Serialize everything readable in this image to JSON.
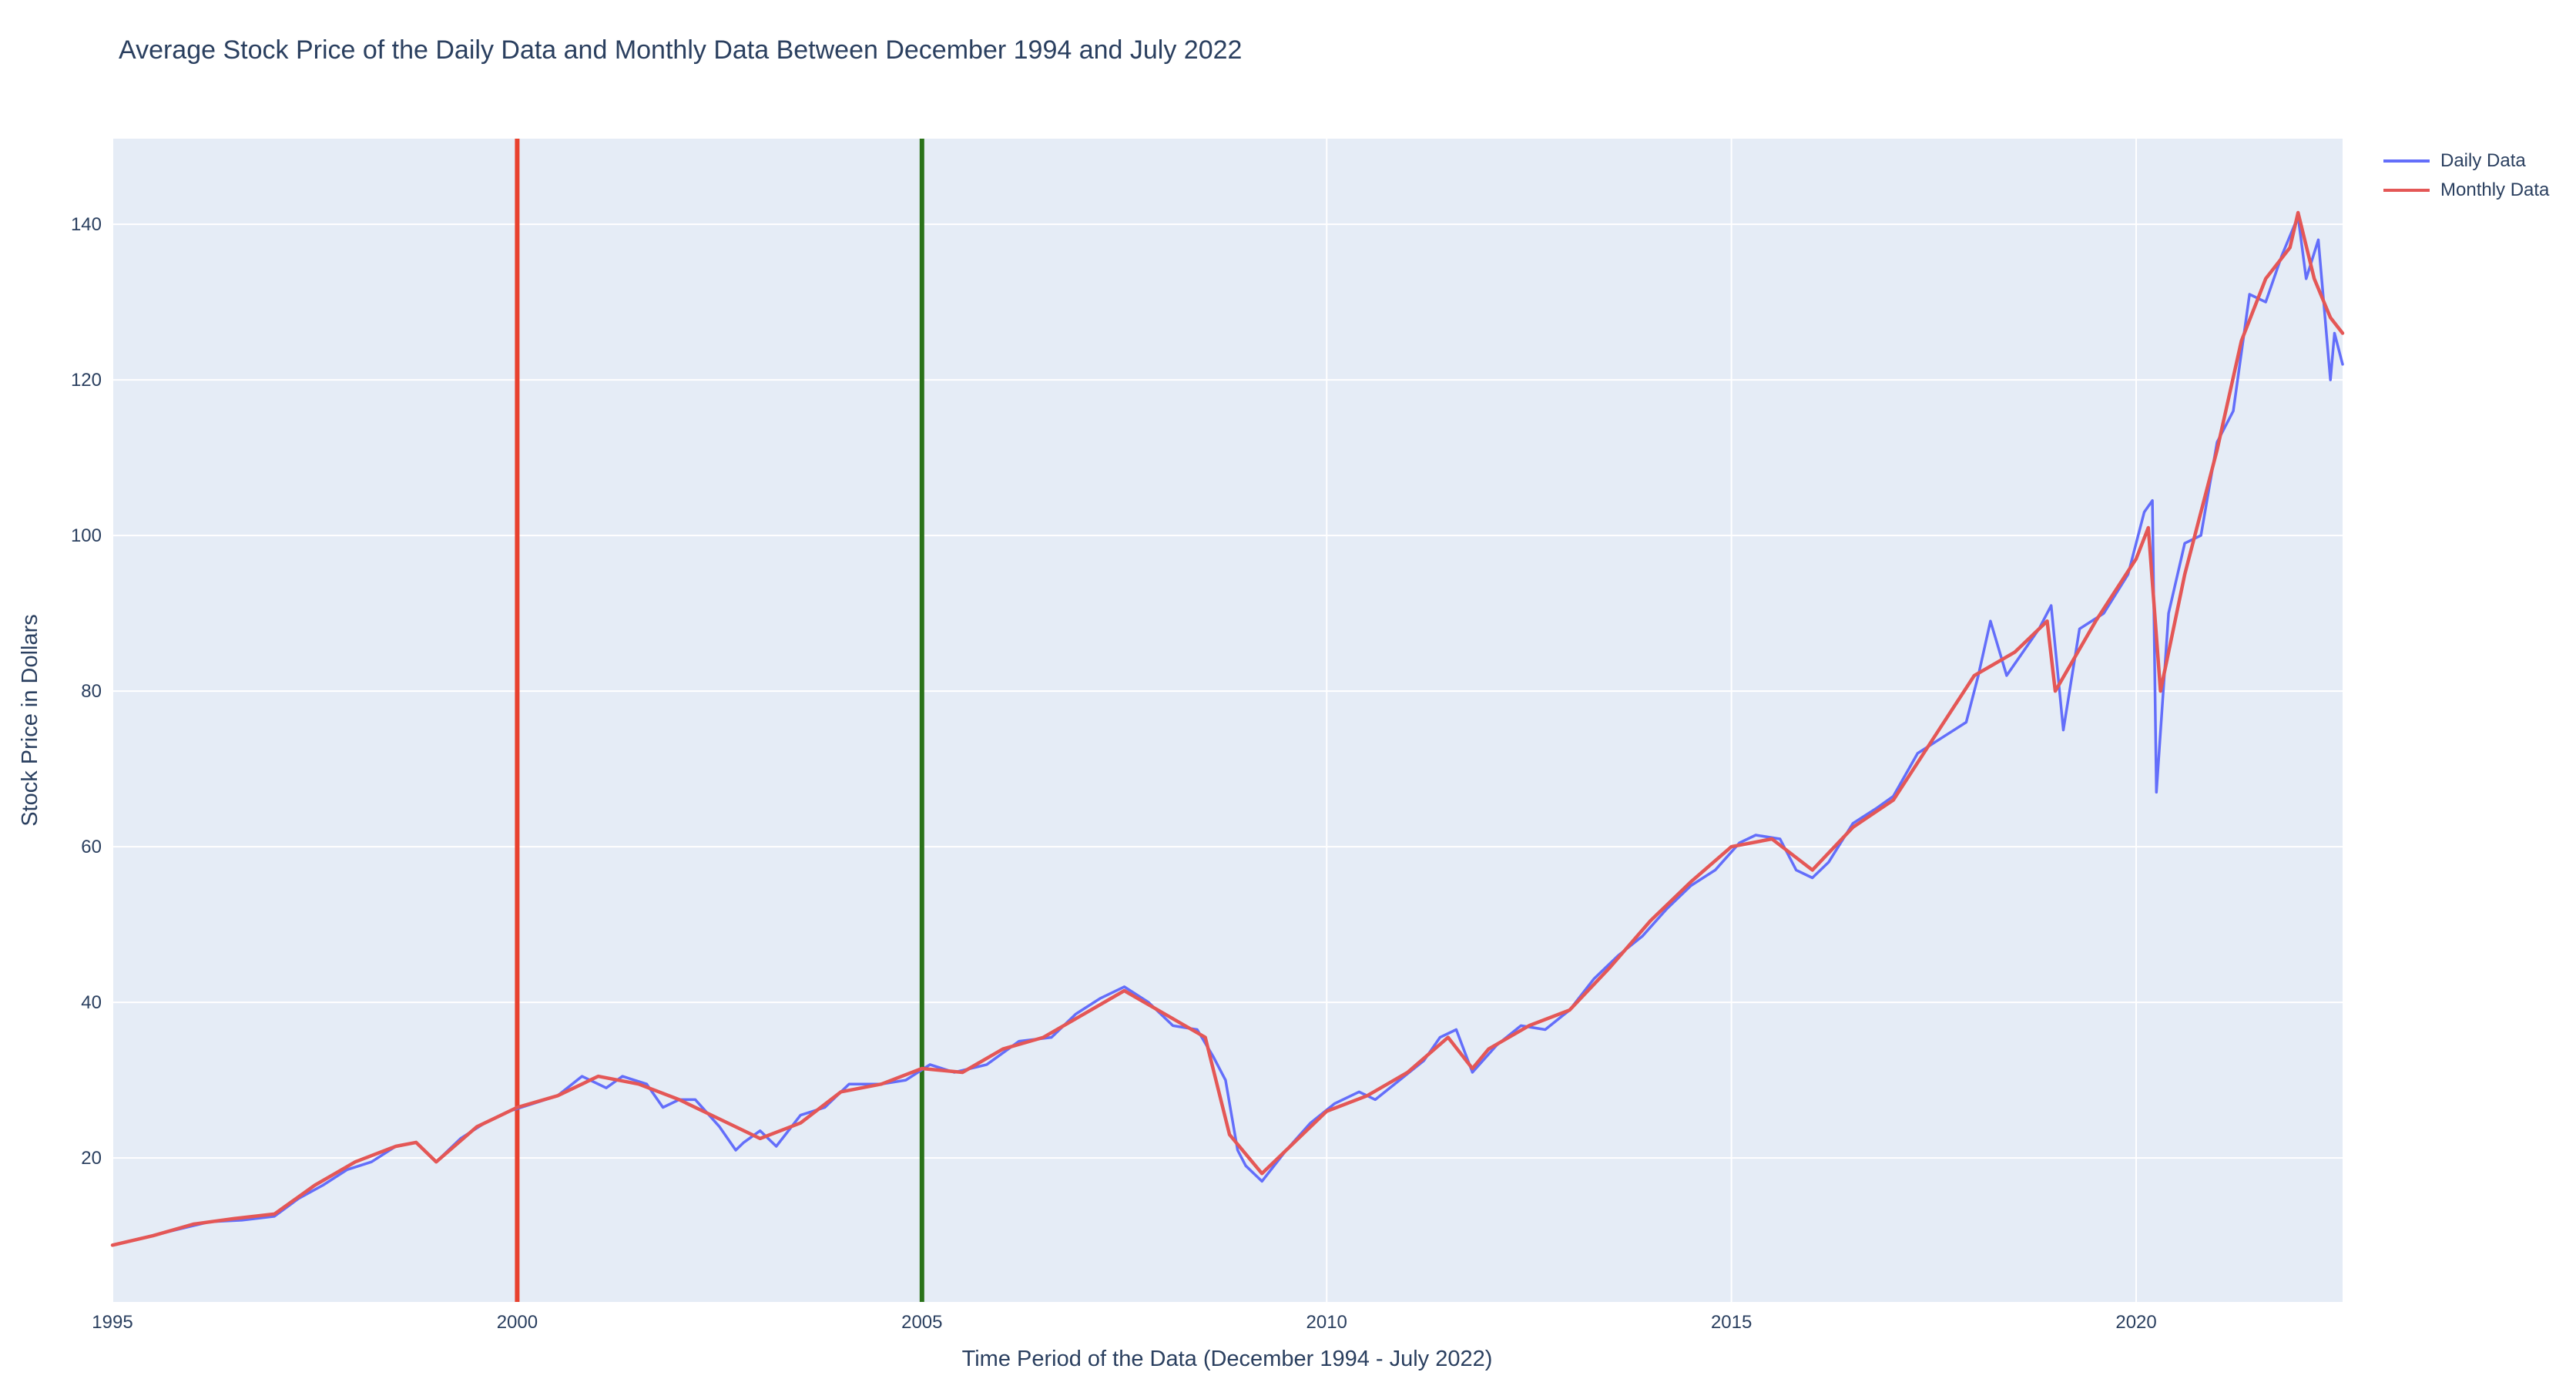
{
  "chart_data": {
    "type": "line",
    "title": "Average Stock Price of the Daily Data and Monthly Data Between December 1994 and July 2022",
    "xlabel": "Time Period of the Data (December 1994 - July 2022)",
    "ylabel": "Stock Price in Dollars",
    "xlim": [
      1995.0,
      2022.55
    ],
    "ylim": [
      1.5,
      151
    ],
    "x_ticks": [
      1995,
      2000,
      2005,
      2010,
      2015,
      2020
    ],
    "x_tick_labels": [
      "1995",
      "2000",
      "2005",
      "2010",
      "2015",
      "2020"
    ],
    "y_ticks": [
      20,
      40,
      60,
      80,
      100,
      120,
      140
    ],
    "y_tick_labels": [
      "20",
      "40",
      "60",
      "80",
      "100",
      "120",
      "140"
    ],
    "grid": true,
    "legend_position": "top-right",
    "vertical_lines": [
      {
        "x": 2000.0,
        "color": "#e8412e"
      },
      {
        "x": 2005.0,
        "color": "#2a7219"
      }
    ],
    "series": [
      {
        "name": "Daily Data",
        "color": "#636efa",
        "x": [
          1995.0,
          1995.4,
          1995.8,
          1996.2,
          1996.6,
          1997.0,
          1997.3,
          1997.6,
          1997.9,
          1998.2,
          1998.5,
          1998.75,
          1999.0,
          1999.3,
          1999.6,
          1999.9,
          2000.2,
          2000.5,
          2000.8,
          2001.1,
          2001.3,
          2001.6,
          2001.8,
          2002.0,
          2002.2,
          2002.5,
          2002.7,
          2002.8,
          2003.0,
          2003.2,
          2003.5,
          2003.8,
          2004.1,
          2004.5,
          2004.8,
          2005.1,
          2005.4,
          2005.8,
          2006.2,
          2006.6,
          2006.9,
          2007.2,
          2007.5,
          2007.8,
          2008.1,
          2008.4,
          2008.6,
          2008.75,
          2008.9,
          2009.0,
          2009.2,
          2009.5,
          2009.8,
          2010.1,
          2010.4,
          2010.6,
          2010.9,
          2011.2,
          2011.4,
          2011.6,
          2011.8,
          2012.1,
          2012.4,
          2012.7,
          2013.0,
          2013.3,
          2013.6,
          2013.9,
          2014.2,
          2014.5,
          2014.8,
          2015.1,
          2015.3,
          2015.6,
          2015.8,
          2016.0,
          2016.2,
          2016.5,
          2016.8,
          2017.0,
          2017.3,
          2017.6,
          2017.9,
          2018.05,
          2018.2,
          2018.4,
          2018.6,
          2018.8,
          2018.95,
          2019.1,
          2019.3,
          2019.6,
          2019.9,
          2020.1,
          2020.2,
          2020.25,
          2020.4,
          2020.6,
          2020.8,
          2021.0,
          2021.2,
          2021.4,
          2021.6,
          2021.8,
          2022.0,
          2022.1,
          2022.25,
          2022.4,
          2022.45,
          2022.55
        ],
        "values": [
          8.8,
          9.8,
          10.8,
          11.8,
          12.0,
          12.5,
          14.8,
          16.5,
          18.5,
          19.5,
          21.5,
          22.0,
          19.5,
          22.5,
          24.5,
          26.0,
          27.0,
          28.0,
          30.5,
          29.0,
          30.5,
          29.5,
          26.5,
          27.5,
          27.5,
          24.0,
          21.0,
          22.0,
          23.5,
          21.5,
          25.5,
          26.5,
          29.5,
          29.5,
          30.0,
          32.0,
          31.0,
          32.0,
          35.0,
          35.5,
          38.5,
          40.5,
          42.0,
          40.0,
          37.0,
          36.5,
          33.0,
          30.0,
          21.0,
          19.0,
          17.0,
          21.0,
          24.5,
          27.0,
          28.5,
          27.5,
          30.0,
          32.5,
          35.5,
          36.5,
          31.0,
          34.5,
          37.0,
          36.5,
          39.0,
          43.0,
          46.0,
          48.5,
          52.0,
          55.0,
          57.0,
          60.5,
          61.5,
          61.0,
          57.0,
          56.0,
          58.0,
          63.0,
          65.0,
          66.5,
          72.0,
          74.0,
          76.0,
          82.0,
          89.0,
          82.0,
          85.0,
          88.0,
          91.0,
          75.0,
          88.0,
          90.0,
          95.0,
          103.0,
          104.5,
          67.0,
          90.0,
          99.0,
          100.0,
          112.0,
          116.0,
          131.0,
          130.0,
          136.0,
          141.0,
          133.0,
          138.0,
          120.0,
          126.0,
          122.0
        ]
      },
      {
        "name": "Monthly Data",
        "color": "#e45756",
        "x": [
          1995.0,
          1995.5,
          1996.0,
          1996.5,
          1997.0,
          1997.5,
          1998.0,
          1998.5,
          1998.75,
          1999.0,
          1999.5,
          2000.0,
          2000.5,
          2001.0,
          2001.5,
          2002.0,
          2002.5,
          2003.0,
          2003.5,
          2004.0,
          2004.5,
          2005.0,
          2005.5,
          2006.0,
          2006.5,
          2007.0,
          2007.5,
          2008.0,
          2008.5,
          2008.8,
          2009.2,
          2009.6,
          2010.0,
          2010.5,
          2011.0,
          2011.5,
          2011.8,
          2012.0,
          2012.5,
          2013.0,
          2013.5,
          2014.0,
          2014.5,
          2015.0,
          2015.5,
          2016.0,
          2016.5,
          2017.0,
          2017.5,
          2018.0,
          2018.5,
          2018.9,
          2019.0,
          2019.5,
          2020.0,
          2020.15,
          2020.3,
          2020.6,
          2021.0,
          2021.3,
          2021.6,
          2021.9,
          2022.0,
          2022.2,
          2022.4,
          2022.55
        ],
        "values": [
          8.8,
          10.0,
          11.5,
          12.2,
          12.8,
          16.5,
          19.5,
          21.5,
          22.0,
          19.5,
          24.0,
          26.5,
          28.0,
          30.5,
          29.5,
          27.5,
          25.0,
          22.5,
          24.5,
          28.5,
          29.5,
          31.5,
          31.0,
          34.0,
          35.5,
          38.5,
          41.5,
          38.5,
          35.5,
          23.0,
          18.0,
          22.0,
          26.0,
          28.0,
          31.0,
          35.5,
          31.5,
          34.0,
          37.0,
          39.0,
          44.5,
          50.5,
          55.5,
          60.0,
          61.0,
          57.0,
          62.5,
          66.0,
          74.0,
          82.0,
          85.0,
          89.0,
          80.0,
          89.0,
          97.0,
          101.0,
          80.0,
          95.0,
          111.0,
          125.0,
          133.0,
          137.0,
          141.5,
          133.0,
          128.0,
          126.0
        ]
      }
    ]
  }
}
